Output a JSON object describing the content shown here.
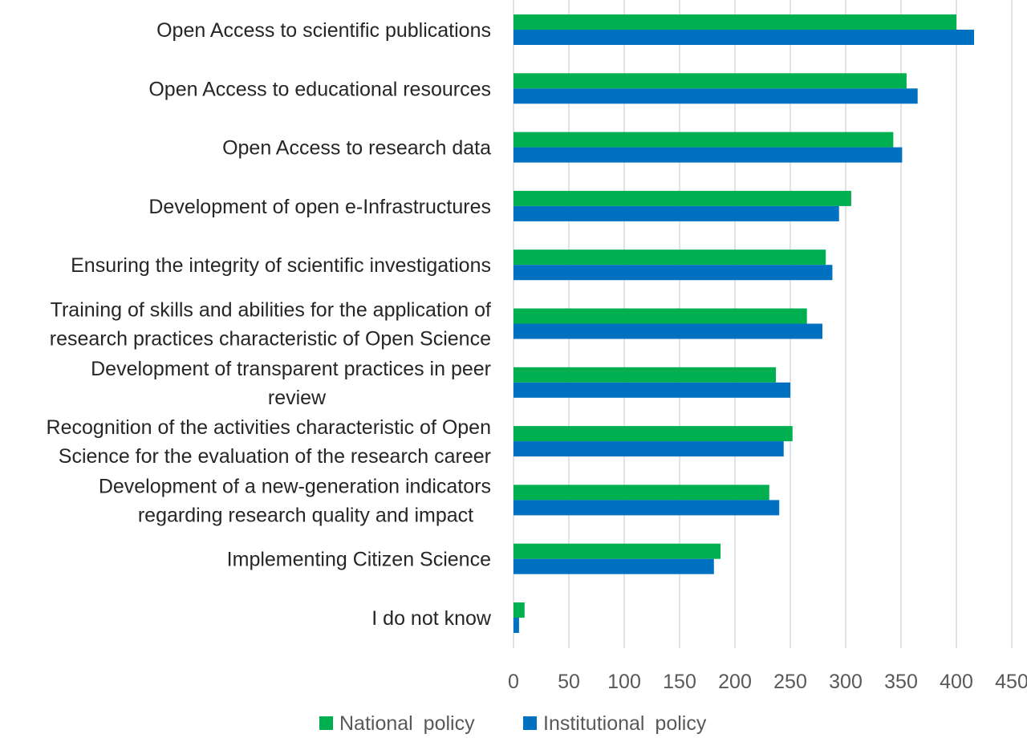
{
  "chart_data": {
    "type": "bar",
    "orientation": "horizontal",
    "title": "",
    "xlabel": "",
    "ylabel": "",
    "categories": [
      [
        "Open Access to scientific publications"
      ],
      [
        "Open Access to educational resources"
      ],
      [
        "Open Access to research data"
      ],
      [
        "Development of open e-Infrastructures"
      ],
      [
        "Ensuring the integrity of scientific investigations"
      ],
      [
        "Training of skills and abilities for the application of",
        "research practices characteristic of Open Science"
      ],
      [
        "Development of transparent practices in peer",
        "review"
      ],
      [
        "Recognition of the activities characteristic of Open",
        "Science for the evaluation of the research career"
      ],
      [
        "Development of a new-generation indicators",
        "regarding research quality and impact"
      ],
      [
        "Implementing Citizen Science"
      ],
      [
        "I do not know"
      ]
    ],
    "series": [
      {
        "name": "National policy",
        "color": "#00b050",
        "values": [
          400,
          355,
          343,
          305,
          282,
          265,
          237,
          252,
          231,
          187,
          10
        ]
      },
      {
        "name": "Institutional policy",
        "color": "#0070c0",
        "values": [
          416,
          365,
          351,
          294,
          288,
          279,
          250,
          244,
          240,
          181,
          5
        ]
      }
    ],
    "xlim": [
      0,
      450
    ],
    "xticks": [
      0,
      50,
      100,
      150,
      200,
      250,
      300,
      350,
      400,
      450
    ],
    "grid": true,
    "legend_position": "bottom"
  }
}
